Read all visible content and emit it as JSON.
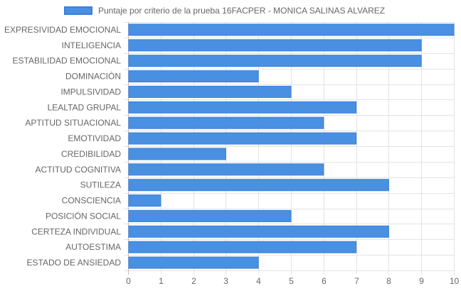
{
  "colors": {
    "bar": "#4a90e2",
    "bar_border": "#3a7fd9",
    "grid": "#e3e3e3",
    "axis_text": "#666666"
  },
  "chart_data": {
    "type": "bar",
    "orientation": "horizontal",
    "legend": {
      "position": "top",
      "entries": [
        "Puntaje por criterio de la prueba 16FACPER - MONICA SALINAS ALVAREZ"
      ]
    },
    "series": [
      {
        "name": "Puntaje por criterio de la prueba 16FACPER - MONICA SALINAS ALVAREZ",
        "values": [
          10,
          9,
          9,
          4,
          5,
          7,
          6,
          7,
          3,
          6,
          8,
          1,
          5,
          8,
          7,
          4
        ]
      }
    ],
    "categories": [
      "EXPRESIVIDAD EMOCIONAL",
      "INTELIGENCIA",
      "ESTABILIDAD EMOCIONAL",
      "DOMINACIÓN",
      "IMPULSIVIDAD",
      "LEALTAD GRUPAL",
      "APTITUD SITUACIONAL",
      "EMOTIVIDAD",
      "CREDIBILIDAD",
      "ACTITUD COGNITIVA",
      "SUTILEZA",
      "CONSCIENCIA",
      "POSICIÓN SOCIAL",
      "CERTEZA INDIVIDUAL",
      "AUTOESTIMA",
      "ESTADO DE ANSIEDAD"
    ],
    "xlim": [
      0,
      10
    ],
    "x_ticks": [
      "0",
      "1",
      "2",
      "3",
      "4",
      "5",
      "6",
      "7",
      "8",
      "9",
      "10"
    ],
    "grid": true
  }
}
